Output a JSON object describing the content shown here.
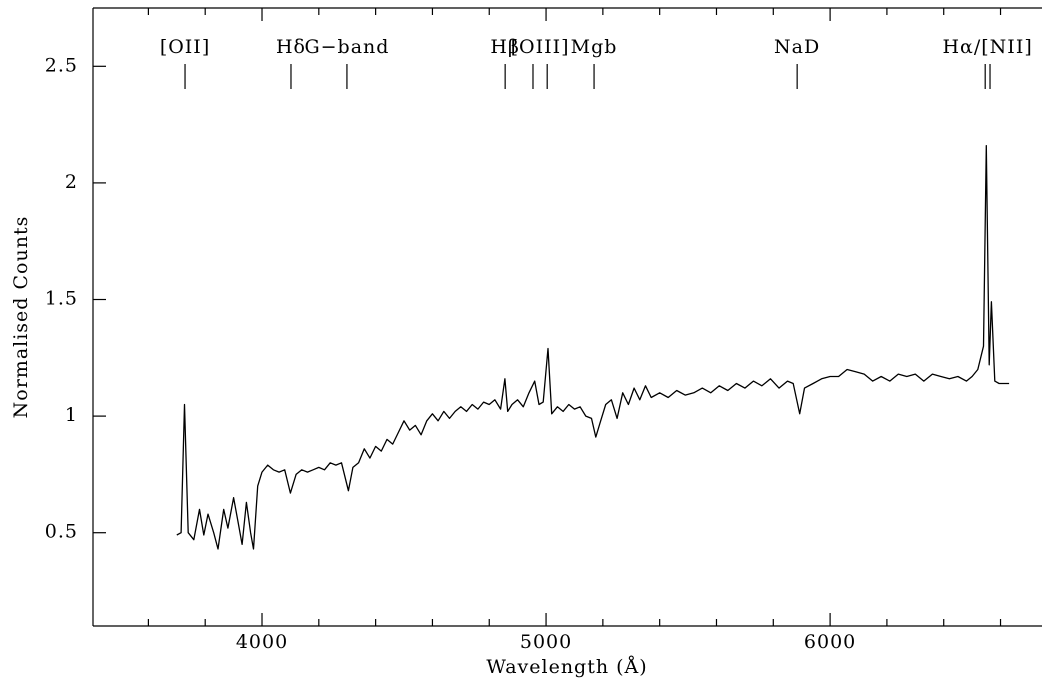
{
  "chart_data": {
    "type": "line",
    "xlabel": "Wavelength (Å)",
    "ylabel": "Normalised Counts",
    "xlim": [
      3405,
      6746
    ],
    "ylim": [
      0.1,
      2.75
    ],
    "xticks": [
      4000,
      5000,
      6000
    ],
    "xminorticks": [
      3600,
      3800,
      4200,
      4400,
      4600,
      4800,
      5200,
      5400,
      5600,
      5800,
      6200,
      6400,
      6600
    ],
    "yticks": [
      0.5,
      1,
      1.5,
      2,
      2.5
    ],
    "color": "#000000",
    "line_markers": [
      {
        "label": "[OII]",
        "x": [
          3729
        ]
      },
      {
        "label": "Hδ",
        "x": [
          4102
        ]
      },
      {
        "label": "G−band",
        "x": [
          4299
        ]
      },
      {
        "label": "Hβ",
        "x": [
          4856
        ]
      },
      {
        "label": "[OIII]",
        "x": [
          4954,
          5004
        ]
      },
      {
        "label": "Mgb",
        "x": [
          5169
        ]
      },
      {
        "label": "NaD",
        "x": [
          5884
        ]
      },
      {
        "label": "Hα/[NII]",
        "x": [
          6546,
          6563
        ]
      }
    ],
    "x": [
      3700,
      3715,
      3727,
      3740,
      3760,
      3780,
      3795,
      3810,
      3830,
      3845,
      3865,
      3880,
      3900,
      3915,
      3930,
      3945,
      3960,
      3970,
      3985,
      4000,
      4020,
      4040,
      4060,
      4080,
      4100,
      4120,
      4140,
      4160,
      4180,
      4200,
      4220,
      4240,
      4260,
      4280,
      4304,
      4320,
      4340,
      4360,
      4380,
      4400,
      4420,
      4440,
      4460,
      4480,
      4500,
      4520,
      4540,
      4560,
      4580,
      4600,
      4620,
      4640,
      4660,
      4680,
      4700,
      4720,
      4740,
      4760,
      4780,
      4800,
      4820,
      4840,
      4855,
      4865,
      4880,
      4900,
      4920,
      4940,
      4960,
      4975,
      4990,
      5007,
      5020,
      5040,
      5060,
      5080,
      5100,
      5120,
      5140,
      5160,
      5175,
      5190,
      5210,
      5230,
      5250,
      5270,
      5290,
      5310,
      5330,
      5350,
      5370,
      5400,
      5430,
      5460,
      5490,
      5520,
      5550,
      5580,
      5610,
      5640,
      5670,
      5700,
      5730,
      5760,
      5790,
      5820,
      5850,
      5870,
      5893,
      5910,
      5940,
      5970,
      6000,
      6030,
      6060,
      6090,
      6120,
      6150,
      6180,
      6210,
      6240,
      6270,
      6300,
      6330,
      6360,
      6390,
      6420,
      6450,
      6480,
      6500,
      6520,
      6540,
      6550,
      6560,
      6568,
      6580,
      6595,
      6610,
      6630
    ],
    "values": [
      0.49,
      0.5,
      1.05,
      0.5,
      0.47,
      0.6,
      0.49,
      0.58,
      0.5,
      0.43,
      0.6,
      0.52,
      0.65,
      0.55,
      0.45,
      0.63,
      0.5,
      0.43,
      0.7,
      0.76,
      0.79,
      0.77,
      0.76,
      0.77,
      0.67,
      0.75,
      0.77,
      0.76,
      0.77,
      0.78,
      0.77,
      0.8,
      0.79,
      0.8,
      0.68,
      0.78,
      0.8,
      0.86,
      0.82,
      0.87,
      0.85,
      0.9,
      0.88,
      0.93,
      0.98,
      0.94,
      0.96,
      0.92,
      0.98,
      1.01,
      0.98,
      1.02,
      0.99,
      1.02,
      1.04,
      1.02,
      1.05,
      1.03,
      1.06,
      1.05,
      1.07,
      1.03,
      1.16,
      1.02,
      1.05,
      1.07,
      1.04,
      1.1,
      1.15,
      1.05,
      1.06,
      1.29,
      1.01,
      1.04,
      1.02,
      1.05,
      1.03,
      1.04,
      1.0,
      0.99,
      0.91,
      0.97,
      1.05,
      1.07,
      0.99,
      1.1,
      1.05,
      1.12,
      1.07,
      1.13,
      1.08,
      1.1,
      1.08,
      1.11,
      1.09,
      1.1,
      1.12,
      1.1,
      1.13,
      1.11,
      1.14,
      1.12,
      1.15,
      1.13,
      1.16,
      1.12,
      1.15,
      1.14,
      1.01,
      1.12,
      1.14,
      1.16,
      1.17,
      1.17,
      1.2,
      1.19,
      1.18,
      1.15,
      1.17,
      1.15,
      1.18,
      1.17,
      1.18,
      1.15,
      1.18,
      1.17,
      1.16,
      1.17,
      1.15,
      1.17,
      1.2,
      1.3,
      2.16,
      1.22,
      1.49,
      1.15,
      1.14,
      1.14,
      1.14
    ]
  }
}
